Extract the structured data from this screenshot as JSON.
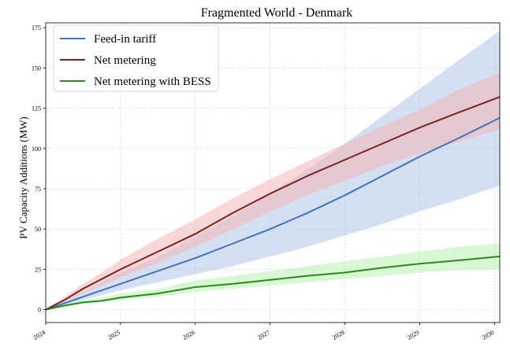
{
  "chart_data": {
    "type": "line",
    "title": "Fragmented World - Denmark",
    "xlabel": "",
    "ylabel": "PV Capacity Additions (MW)",
    "xlim": [
      2024.0,
      2030.07
    ],
    "ylim": [
      -8,
      178
    ],
    "x_ticks": [
      2024,
      2025,
      2026,
      2027,
      2028,
      2029,
      2030
    ],
    "x_tick_labels": [
      "2024",
      "2025",
      "2026",
      "2027",
      "2028",
      "2029",
      "2030"
    ],
    "y_ticks": [
      0,
      25,
      50,
      75,
      100,
      125,
      150,
      175
    ],
    "y_tick_labels": [
      "0",
      "25",
      "50",
      "75",
      "100",
      "125",
      "150",
      "175"
    ],
    "grid": true,
    "legend_position": "top-left",
    "series": [
      {
        "name": "Feed-in tariff",
        "color": "#4472b8",
        "band_color": "#aec7e8",
        "x": [
          2024.0,
          2024.25,
          2024.5,
          2024.75,
          2025.0,
          2025.5,
          2026.0,
          2026.5,
          2027.0,
          2027.5,
          2028.0,
          2028.5,
          2029.0,
          2029.5,
          2030.07
        ],
        "y": [
          0,
          4,
          8,
          12,
          16,
          24,
          32,
          41,
          50,
          60,
          71,
          83,
          95,
          106,
          119
        ],
        "lower": [
          0,
          3,
          6,
          9,
          12,
          17,
          22,
          27,
          33,
          39,
          46,
          53,
          61,
          68,
          77
        ],
        "upper": [
          0,
          6,
          11,
          17,
          23,
          33,
          45,
          58,
          72,
          87,
          103,
          120,
          137,
          154,
          173
        ]
      },
      {
        "name": "Net metering",
        "color": "#7b2020",
        "band_color": "#f4b6b6",
        "x": [
          2024.0,
          2024.25,
          2024.5,
          2024.75,
          2025.0,
          2025.5,
          2026.0,
          2026.5,
          2027.0,
          2027.5,
          2028.0,
          2028.5,
          2029.0,
          2029.5,
          2030.07
        ],
        "y": [
          0,
          6,
          13,
          19,
          25,
          36,
          47,
          60,
          72,
          83,
          93,
          103,
          113,
          122,
          132
        ],
        "lower": [
          0,
          5,
          10,
          15,
          20,
          29,
          39,
          50,
          61,
          71,
          80,
          89,
          97,
          104,
          112
        ],
        "upper": [
          0,
          8,
          16,
          23,
          31,
          44,
          56,
          69,
          81,
          92,
          103,
          114,
          124,
          136,
          147
        ]
      },
      {
        "name": "Net metering with BESS",
        "color": "#2a8a1a",
        "band_color": "#b8f0b0",
        "x": [
          2024.0,
          2024.25,
          2024.5,
          2024.75,
          2025.0,
          2025.5,
          2026.0,
          2026.5,
          2027.0,
          2027.5,
          2028.0,
          2028.5,
          2029.0,
          2029.5,
          2030.07
        ],
        "y": [
          0,
          2.5,
          4.5,
          5.5,
          7.5,
          10,
          14,
          16,
          18.5,
          21,
          23,
          26,
          28.5,
          30.5,
          33
        ],
        "lower": [
          0,
          2,
          3.5,
          4.5,
          6,
          8,
          11,
          13,
          15,
          17,
          19,
          21,
          23,
          24.5,
          25
        ],
        "upper": [
          0,
          3.5,
          6,
          7.5,
          10,
          13,
          18,
          21,
          24,
          27,
          30,
          33,
          36,
          39,
          41
        ]
      }
    ]
  }
}
